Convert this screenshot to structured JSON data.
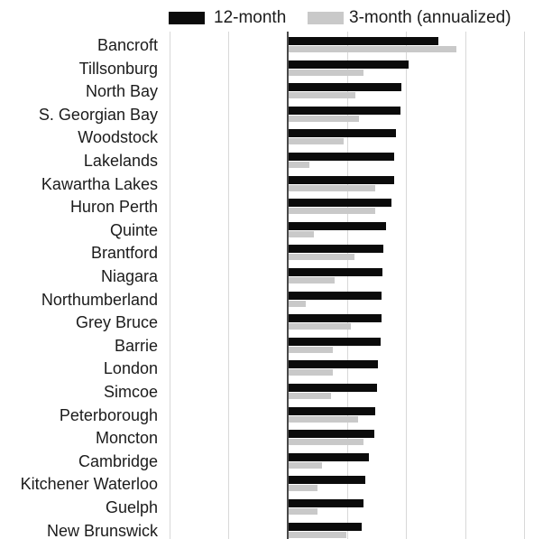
{
  "legend": {
    "items": [
      {
        "label": "12-month",
        "color": "#0b0b0b"
      },
      {
        "label": "3-month (annualized)",
        "color": "#c9c9c9"
      }
    ]
  },
  "chart_data": {
    "type": "bar",
    "orientation": "horizontal",
    "title": "",
    "xlabel": "",
    "ylabel": "",
    "legend_position": "top",
    "grid": "vertical",
    "value_units": "gridline spacings from the zero baseline (x-axis tick labels are not visible in the image)",
    "categories": [
      "Bancroft",
      "Tillsonburg",
      "North Bay",
      "S. Georgian Bay",
      "Woodstock",
      "Lakelands",
      "Kawartha Lakes",
      "Huron Perth",
      "Quinte",
      "Brantford",
      "Niagara",
      "Northumberland",
      "Grey Bruce",
      "Barrie",
      "London",
      "Simcoe",
      "Peterborough",
      "Moncton",
      "Cambridge",
      "Kitchener Waterloo",
      "Guelph",
      "New Brunswick"
    ],
    "series": [
      {
        "name": "12-month",
        "color": "#0b0b0b",
        "values": [
          2.53,
          2.02,
          1.9,
          1.89,
          1.82,
          1.79,
          1.78,
          1.74,
          1.65,
          1.6,
          1.59,
          1.57,
          1.57,
          1.55,
          1.51,
          1.5,
          1.46,
          1.45,
          1.35,
          1.29,
          1.27,
          1.23
        ]
      },
      {
        "name": "3-month (annualized)",
        "color": "#c9c9c9",
        "values": [
          2.84,
          1.27,
          1.13,
          1.19,
          0.93,
          0.35,
          1.47,
          1.46,
          0.43,
          1.12,
          0.77,
          0.29,
          1.05,
          0.74,
          0.74,
          0.71,
          1.18,
          1.26,
          0.56,
          0.49,
          0.49,
          0.97
        ]
      }
    ],
    "x_axis": {
      "min_units": -2,
      "max_units": 4.45,
      "gridlines_units": [
        -2,
        -1,
        1,
        2,
        3,
        4
      ],
      "zero_baseline": true,
      "tick_labels_visible": false
    },
    "colors": {
      "bar_12_month": "#0b0b0b",
      "bar_3_month": "#c9c9c9",
      "gridline": "#d8d8d8",
      "zero_line": "#4a4a4a",
      "text": "#1b1b1b",
      "background": "#ffffff"
    }
  }
}
